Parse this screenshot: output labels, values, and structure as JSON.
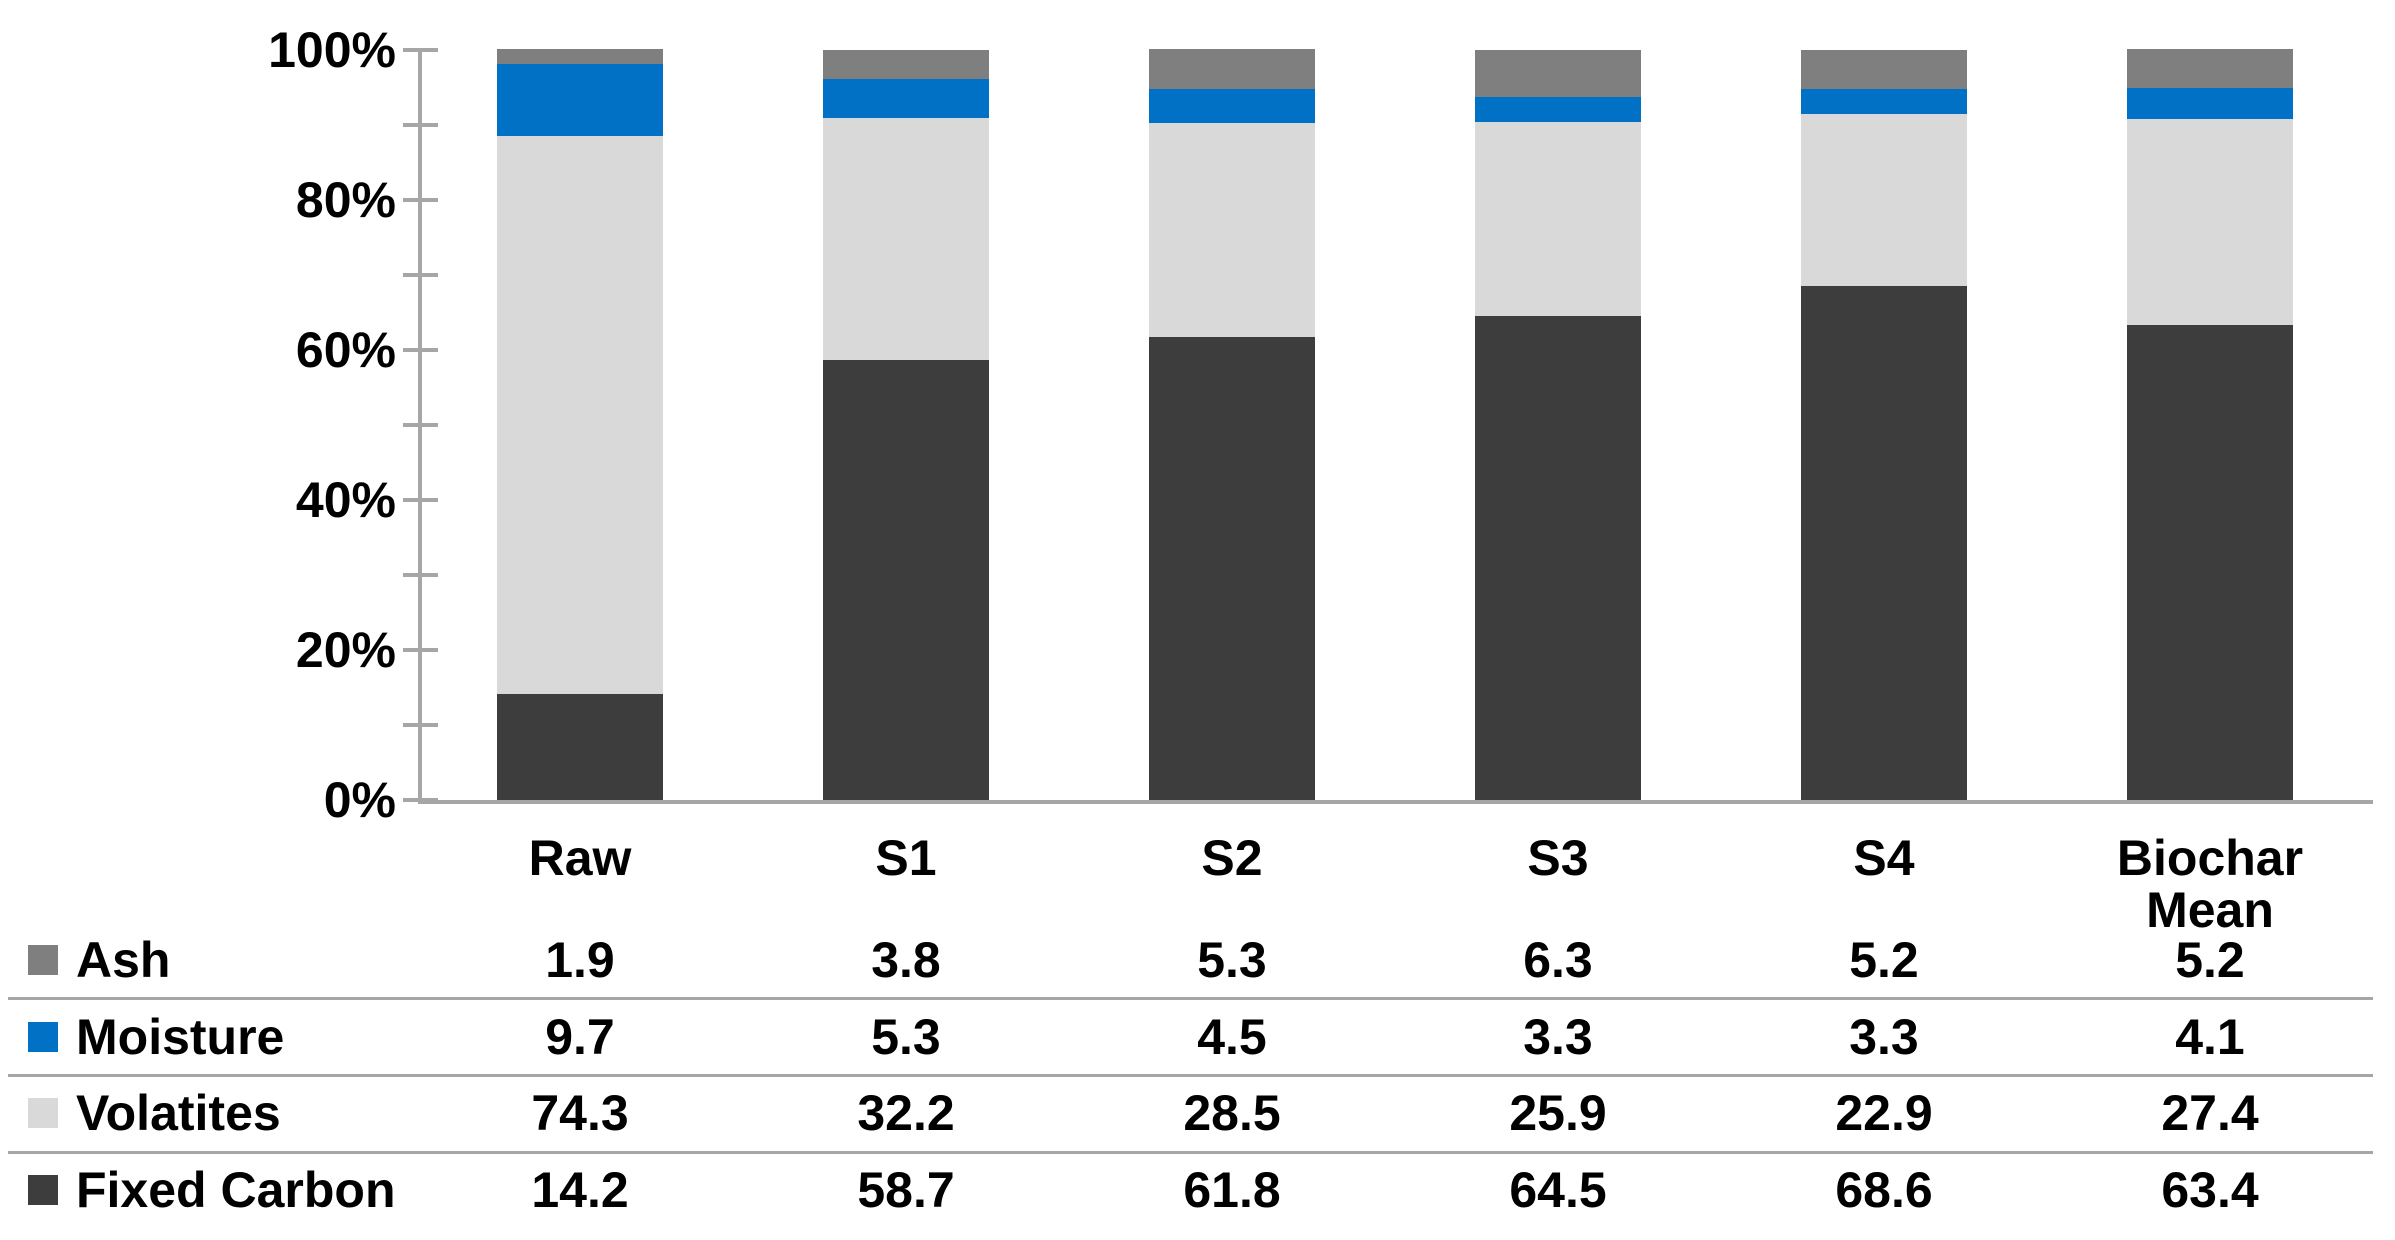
{
  "chart_data": {
    "type": "bar",
    "stacked": true,
    "percent_stacked": true,
    "title": "",
    "xlabel": "",
    "ylabel": "",
    "grid": false,
    "legend_position": "left-of-table-rows",
    "categories": [
      "Raw",
      "S1",
      "S2",
      "S3",
      "S4",
      "Biochar\nMean"
    ],
    "series": [
      {
        "name": "Ash",
        "color": "#7F7F7F",
        "values": [
          1.9,
          3.8,
          5.3,
          6.3,
          5.2,
          5.2
        ]
      },
      {
        "name": "Moisture",
        "color": "#0071C5",
        "values": [
          9.7,
          5.3,
          4.5,
          3.3,
          3.3,
          4.1
        ]
      },
      {
        "name": "Volatites",
        "color": "#D9D9D9",
        "values": [
          74.3,
          32.2,
          28.5,
          25.9,
          22.9,
          27.4
        ]
      },
      {
        "name": "Fixed Carbon",
        "color": "#3D3D3D",
        "values": [
          14.2,
          58.7,
          61.8,
          64.5,
          68.6,
          63.4
        ]
      }
    ],
    "stack_order_bottom_to_top": [
      "Fixed Carbon",
      "Volatites",
      "Moisture",
      "Ash"
    ],
    "y_axis": {
      "range": [
        0,
        100
      ],
      "unit": "%",
      "major_tick_labels": [
        "0%",
        "20%",
        "40%",
        "60%",
        "80%",
        "100%"
      ],
      "major_tick_step": 20,
      "minor_tick_step": 10
    },
    "value_decimals": 1
  },
  "colors": {
    "axis": "#A6A6A6",
    "text": "#000000",
    "background": "#FFFFFF"
  }
}
